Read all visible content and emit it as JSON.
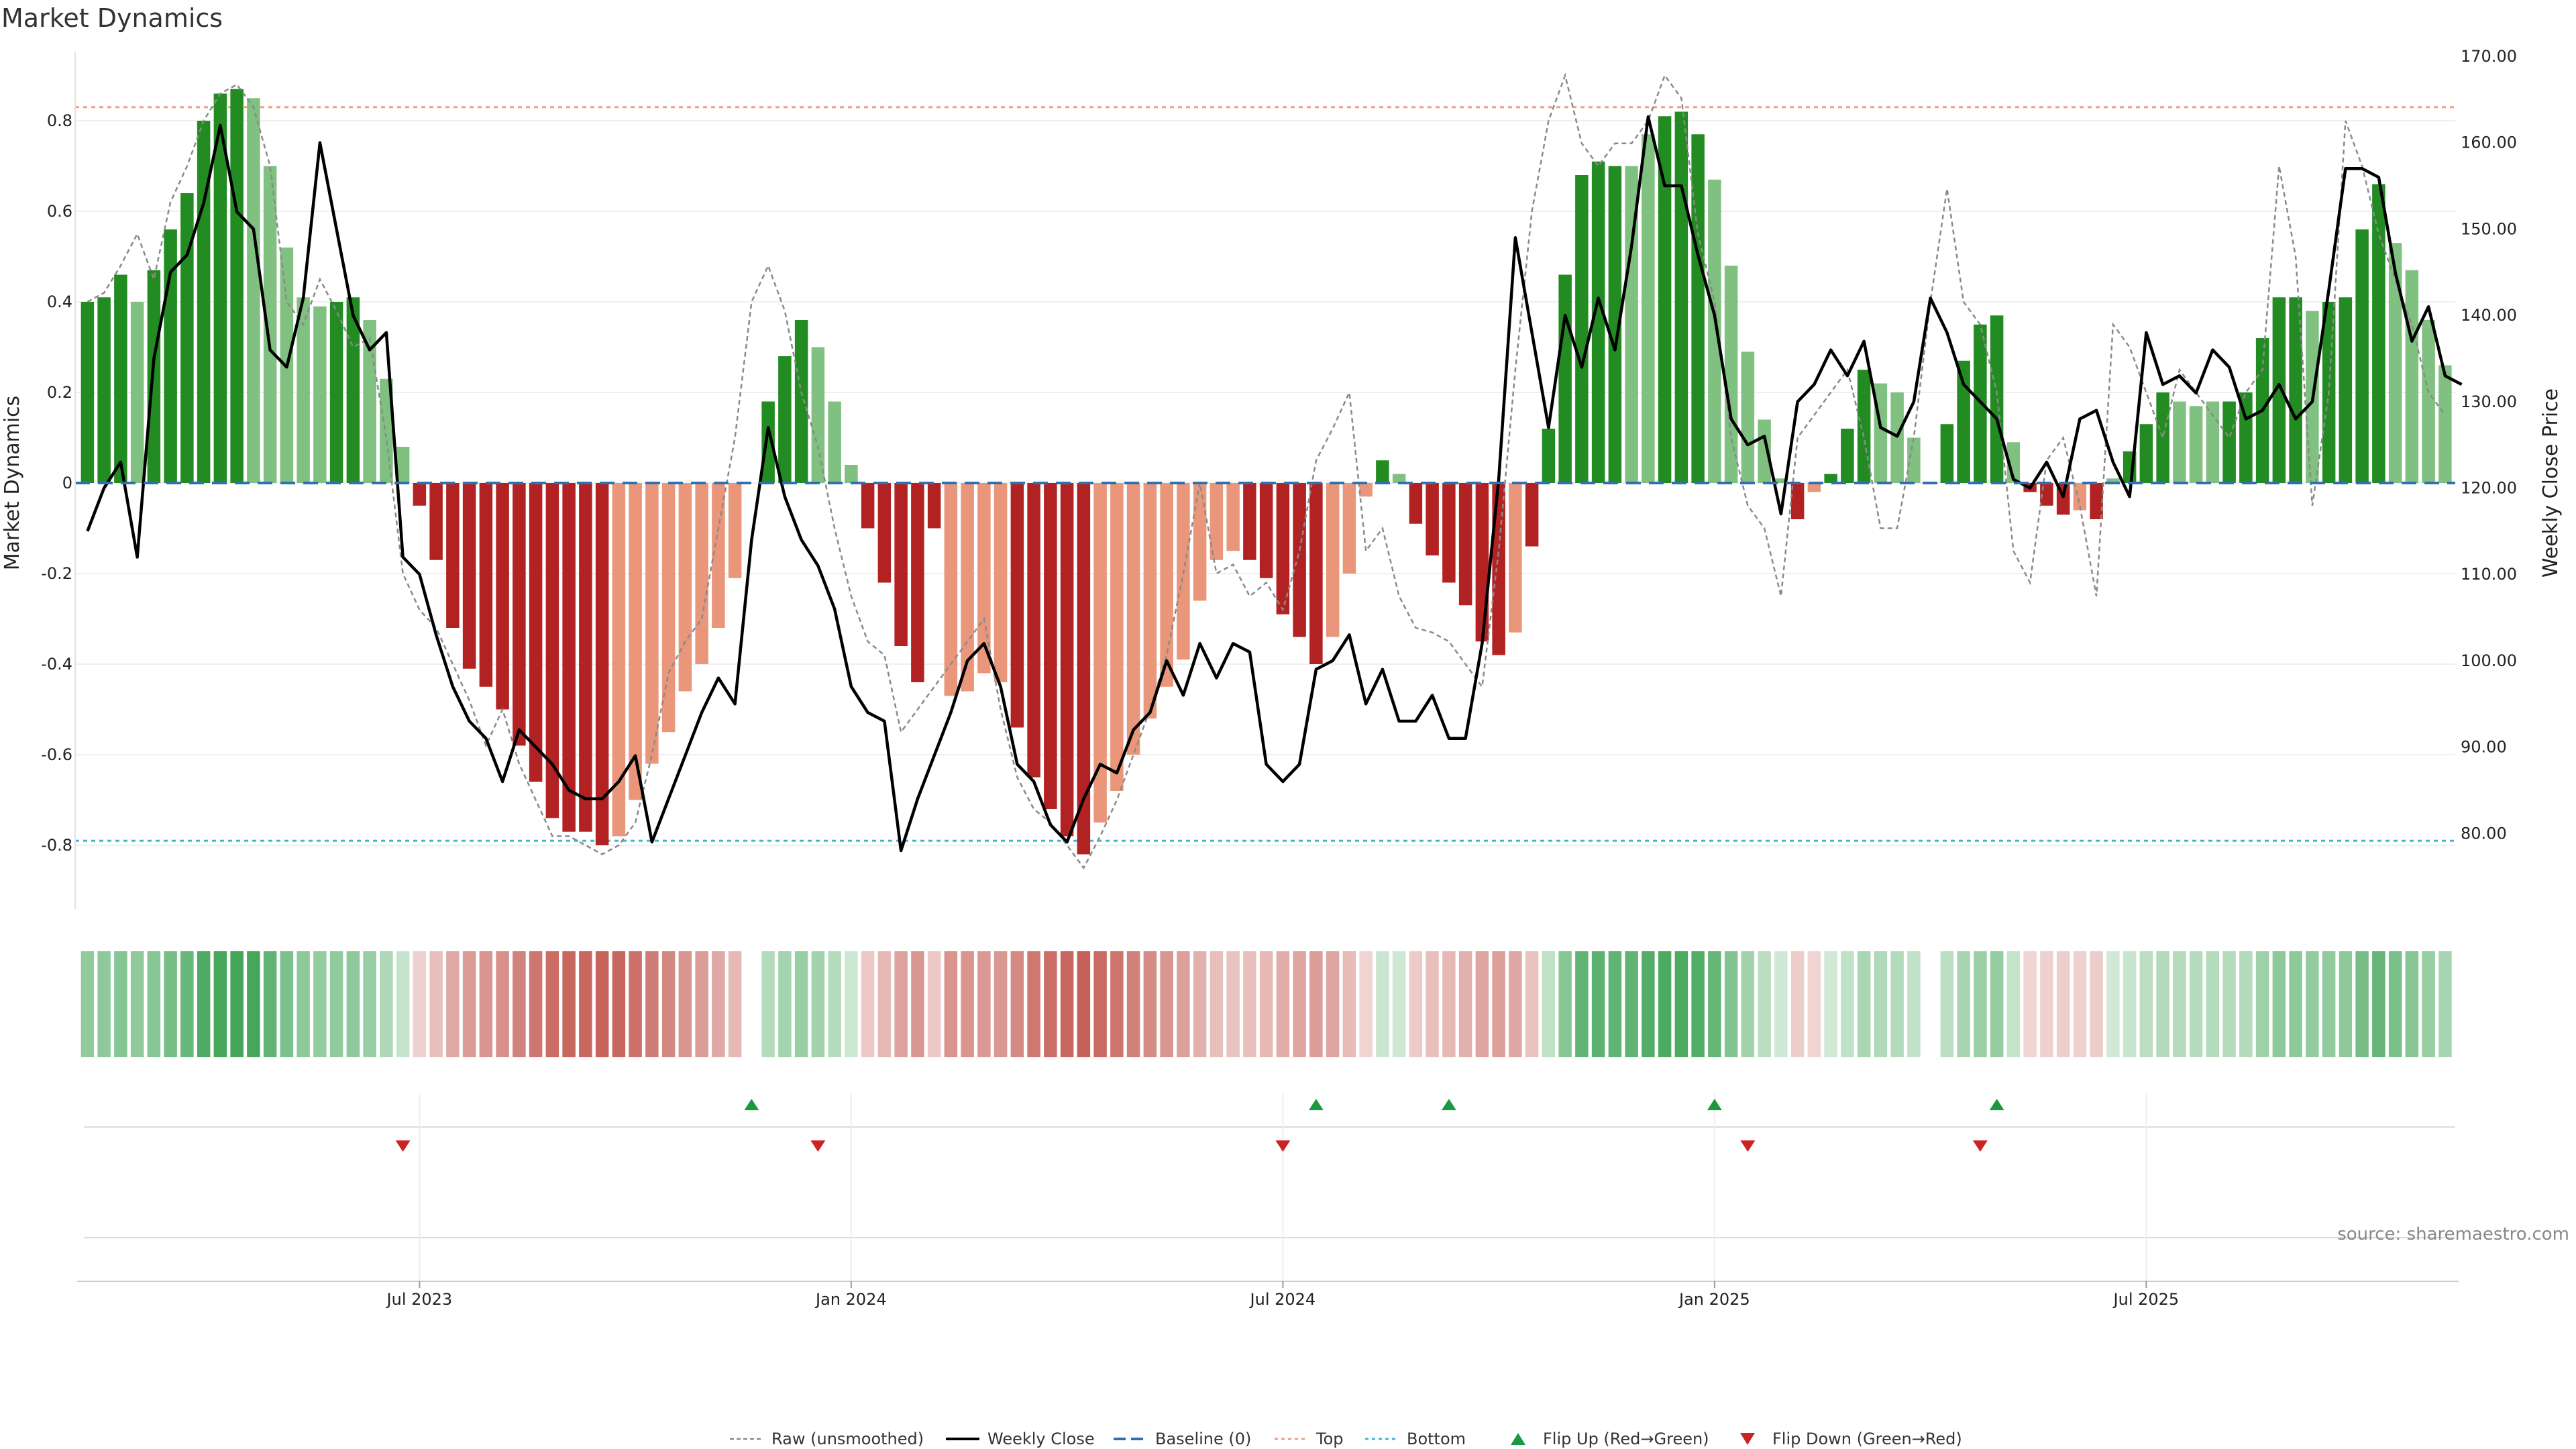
{
  "chart_data": {
    "type": "bar",
    "title": "Market Dynamics",
    "ylabel_left": "Market Dynamics",
    "ylabel_right": "Weekly Close Price",
    "ylim_left": [
      -0.95,
      0.95
    ],
    "ylim_right": [
      70,
      170
    ],
    "yticks_left": [
      "0.8",
      "0.6",
      "0.4",
      "0.2",
      "0",
      "-0.2",
      "-0.4",
      "-0.6",
      "-0.8"
    ],
    "yticks_left_values": [
      0.8,
      0.6,
      0.4,
      0.2,
      0,
      -0.2,
      -0.4,
      -0.6,
      -0.8
    ],
    "yticks_right": [
      "170.00",
      "160.00",
      "150.00",
      "140.00",
      "130.00",
      "120.00",
      "110.00",
      "100.00",
      "90.00",
      "80.00"
    ],
    "yticks_right_values": [
      170,
      160,
      150,
      140,
      130,
      120,
      110,
      100,
      90,
      80
    ],
    "x_tick_labels": [
      "Jul 2023",
      "Jan 2024",
      "Jul 2024",
      "Jan 2025",
      "Jul 2025"
    ],
    "x_tick_weeks": [
      20,
      46,
      72,
      98,
      124
    ],
    "n_weeks": 144,
    "reference_lines": {
      "baseline": 0,
      "top": 0.83,
      "bottom": -0.79
    },
    "market_dynamics": [
      0.4,
      0.41,
      0.46,
      0.4,
      0.47,
      0.56,
      0.64,
      0.8,
      0.86,
      0.87,
      0.85,
      0.7,
      0.52,
      0.41,
      0.39,
      0.4,
      0.41,
      0.36,
      0.23,
      0.08,
      -0.05,
      -0.17,
      -0.32,
      -0.41,
      -0.45,
      -0.5,
      -0.58,
      -0.66,
      -0.74,
      -0.77,
      -0.77,
      -0.8,
      -0.78,
      -0.7,
      -0.62,
      -0.55,
      -0.46,
      -0.4,
      -0.32,
      -0.21,
      0,
      0.18,
      0.28,
      0.36,
      0.3,
      0.18,
      0.04,
      -0.1,
      -0.22,
      -0.36,
      -0.44,
      -0.1,
      -0.47,
      -0.46,
      -0.42,
      -0.44,
      -0.54,
      -0.65,
      -0.72,
      -0.78,
      -0.82,
      -0.75,
      -0.68,
      -0.6,
      -0.52,
      -0.45,
      -0.39,
      -0.26,
      -0.17,
      -0.15,
      -0.17,
      -0.21,
      -0.29,
      -0.34,
      -0.4,
      -0.34,
      -0.2,
      -0.03,
      0.05,
      0.02,
      -0.09,
      -0.16,
      -0.22,
      -0.27,
      -0.35,
      -0.38,
      -0.33,
      -0.14,
      0.12,
      0.46,
      0.68,
      0.71,
      0.7,
      0.7,
      0.77,
      0.81,
      0.82,
      0.77,
      0.67,
      0.48,
      0.29,
      0.14,
      0.01,
      -0.08,
      -0.02,
      0.02,
      0.12,
      0.25,
      0.22,
      0.2,
      0.1,
      0,
      0.13,
      0.27,
      0.35,
      0.37,
      0.09,
      -0.02,
      -0.05,
      -0.07,
      -0.06,
      -0.08,
      0.01,
      0.07,
      0.13,
      0.2,
      0.18,
      0.17,
      0.18,
      0.18,
      0.2,
      0.32,
      0.41,
      0.41,
      0.38,
      0.4,
      0.41,
      0.56,
      0.66,
      0.53,
      0.47,
      0.36,
      0.26
    ],
    "bar_shades": [
      "d",
      "d",
      "d",
      "l",
      "d",
      "d",
      "d",
      "d",
      "d",
      "d",
      "l",
      "l",
      "l",
      "l",
      "l",
      "d",
      "d",
      "l",
      "l",
      "l",
      "d",
      "d",
      "d",
      "d",
      "d",
      "d",
      "d",
      "d",
      "d",
      "d",
      "d",
      "d",
      "l",
      "l",
      "l",
      "l",
      "l",
      "l",
      "l",
      "l",
      "l",
      "d",
      "d",
      "d",
      "l",
      "l",
      "l",
      "d",
      "d",
      "d",
      "d",
      "d",
      "l",
      "l",
      "l",
      "l",
      "d",
      "d",
      "d",
      "d",
      "d",
      "l",
      "l",
      "l",
      "l",
      "l",
      "l",
      "l",
      "l",
      "l",
      "d",
      "d",
      "d",
      "d",
      "d",
      "l",
      "l",
      "l",
      "d",
      "l",
      "d",
      "d",
      "d",
      "d",
      "d",
      "d",
      "l",
      "d",
      "d",
      "d",
      "d",
      "d",
      "d",
      "l",
      "l",
      "d",
      "d",
      "d",
      "l",
      "l",
      "l",
      "l",
      "l",
      "d",
      "l",
      "d",
      "d",
      "d",
      "l",
      "l",
      "l",
      "l",
      "d",
      "d",
      "d",
      "d",
      "l",
      "d",
      "d",
      "d",
      "l",
      "d",
      "l",
      "d",
      "d",
      "d",
      "l",
      "l",
      "l",
      "d",
      "d",
      "d",
      "d",
      "d",
      "l",
      "d",
      "d",
      "d",
      "d",
      "l",
      "l",
      "l",
      "l"
    ],
    "raw_unsmoothed": [
      0.4,
      0.42,
      0.48,
      0.55,
      0.45,
      0.62,
      0.7,
      0.8,
      0.86,
      0.88,
      0.83,
      0.7,
      0.4,
      0.35,
      0.45,
      0.38,
      0.3,
      0.32,
      0.1,
      -0.2,
      -0.28,
      -0.32,
      -0.4,
      -0.48,
      -0.58,
      -0.5,
      -0.62,
      -0.7,
      -0.78,
      -0.78,
      -0.8,
      -0.82,
      -0.8,
      -0.75,
      -0.6,
      -0.42,
      -0.35,
      -0.3,
      -0.1,
      0.1,
      0.4,
      0.48,
      0.38,
      0.2,
      0.08,
      -0.1,
      -0.25,
      -0.35,
      -0.38,
      -0.55,
      -0.5,
      -0.45,
      -0.4,
      -0.35,
      -0.3,
      -0.5,
      -0.65,
      -0.72,
      -0.75,
      -0.8,
      -0.85,
      -0.78,
      -0.7,
      -0.6,
      -0.5,
      -0.38,
      -0.2,
      0,
      -0.2,
      -0.18,
      -0.25,
      -0.22,
      -0.28,
      -0.15,
      0.05,
      0.12,
      0.2,
      -0.15,
      -0.1,
      -0.25,
      -0.32,
      -0.33,
      -0.35,
      -0.4,
      -0.45,
      -0.15,
      0.25,
      0.6,
      0.8,
      0.9,
      0.75,
      0.7,
      0.75,
      0.75,
      0.8,
      0.9,
      0.85,
      0.55,
      0.4,
      0.1,
      -0.05,
      -0.1,
      -0.25,
      0.1,
      0.15,
      0.2,
      0.25,
      0.1,
      -0.1,
      -0.1,
      0.1,
      0.4,
      0.65,
      0.4,
      0.35,
      0.2,
      -0.15,
      -0.22,
      0.05,
      0.1,
      -0.05,
      -0.25,
      0.35,
      0.3,
      0.2,
      0.1,
      0.25,
      0.2,
      0.15,
      0.1,
      0.2,
      0.25,
      0.7,
      0.5,
      -0.05,
      0.2,
      0.8,
      0.7,
      0.55,
      0.45,
      0.35,
      0.2,
      0.15
    ],
    "weekly_close": [
      115,
      120,
      123,
      112,
      135,
      145,
      147,
      153,
      162,
      152,
      150,
      136,
      134,
      142,
      160,
      150,
      140,
      136,
      138,
      112,
      110,
      103,
      97,
      93,
      91,
      86,
      92,
      90,
      88,
      85,
      84,
      84,
      86,
      89,
      79,
      84,
      89,
      94,
      98,
      95,
      114,
      127,
      119,
      114,
      111,
      106,
      97,
      94,
      93,
      78,
      84,
      89,
      94,
      100,
      102,
      97,
      88,
      86,
      81,
      79,
      84,
      88,
      87,
      92,
      94,
      100,
      96,
      102,
      98,
      102,
      101,
      88,
      86,
      88,
      99,
      100,
      103,
      95,
      99,
      93,
      93,
      96,
      91,
      91,
      102,
      121,
      149,
      138,
      127,
      140,
      134,
      142,
      136,
      148,
      163,
      155,
      155,
      147,
      140,
      128,
      125,
      126,
      117,
      130,
      132,
      136,
      133,
      137,
      127,
      126,
      130,
      142,
      138,
      132,
      130,
      128,
      121,
      120,
      123,
      119,
      128,
      129,
      123,
      119,
      138,
      132,
      133,
      131,
      136,
      134,
      128,
      129,
      132,
      128,
      130,
      143,
      157,
      157,
      156,
      145,
      137,
      141,
      133,
      132
    ],
    "legend": [
      "Raw (unsmoothed)",
      "Weekly Close",
      "Baseline (0)",
      "Top",
      "Bottom",
      "Flip Up (Red→Green)",
      "Flip Down (Green→Red)"
    ],
    "flip_up_weeks": [
      40,
      74,
      82,
      98,
      115
    ],
    "flip_down_weeks": [
      19,
      44,
      72,
      100,
      114
    ],
    "source": "source: sharemaestro.com"
  },
  "colors": {
    "dark_green": "#228b22",
    "light_green": "#80c080",
    "dark_red": "#b22222",
    "light_red": "#e9967a",
    "top_line": "#f0a080",
    "bottom_line": "#40b8d0",
    "baseline": "#3070b0",
    "flip_up": "#1a9a40",
    "flip_down": "#cc2222",
    "close_line": "#000000",
    "raw_line": "#8a8a8a"
  }
}
